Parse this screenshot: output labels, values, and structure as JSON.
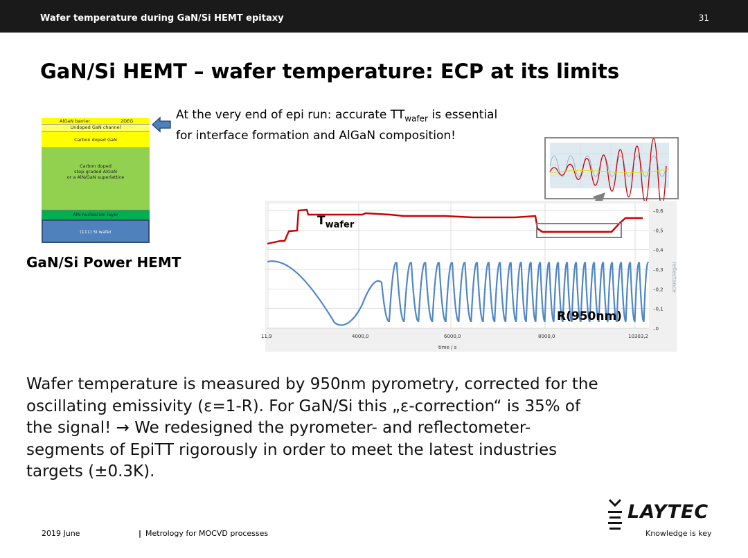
{
  "header": {
    "title": "Wafer temperature during GaN/Si HEMT epitaxy",
    "slide_number": "31"
  },
  "slide_title": "GaN/Si HEMT – wafer temperature: ECP at its limits",
  "layer_stack": {
    "layers": [
      {
        "name": "AlGaN barrier",
        "extra": "2DEG",
        "color": "#ffff00"
      },
      {
        "name": "Undoped GaN channel",
        "color": "#ffff66"
      },
      {
        "name": "Carbon doped GaN",
        "color": "#ffff00"
      },
      {
        "name": "Carbon doped step-graded AlGaN or a AlN/GaN superlattice",
        "line1": "Carbon doped",
        "line2": "step-graded AlGaN",
        "line3": "or a AlN/GaN superlattice",
        "color": "#92d050"
      },
      {
        "name": "AlN nucleation layer",
        "color": "#00b050"
      },
      {
        "name": "(111) Si wafer",
        "color": "#4f81bd"
      }
    ],
    "label": "GaN/Si Power HEMT"
  },
  "note": {
    "line1_before": "At the very end of epi run: accurate TT",
    "line1_sub": "wafer",
    "line1_after": " is essential",
    "line2": "for interface formation and AlGaN composition!"
  },
  "chart_data": {
    "type": "line",
    "xlabel": "time / s",
    "ylabel": "reflectance",
    "x_ticks": [
      "11,9",
      "4000,0",
      "6000,0",
      "8000,0",
      "10303,2"
    ],
    "y_ticks": [
      "0",
      "0,1",
      "0,2",
      "0,3",
      "0,4",
      "0,5",
      "0,6"
    ],
    "xlim": [
      11.9,
      10303.2
    ],
    "ylim": [
      0,
      0.6
    ],
    "series": [
      {
        "name": "Twafer",
        "color": "#cc0000"
      },
      {
        "name": "R(950nm)",
        "color": "#4f86c6"
      }
    ],
    "annotations": {
      "twafer_main": "T",
      "twafer_sub": "wafer",
      "reflectance": "R(950nm)"
    }
  },
  "body_text": [
    "Wafer temperature is measured by 950nm pyrometry, corrected for the",
    "oscillating emissivity (ε=1-R). For GaN/Si this „ε-correction“ is 35% of",
    "the signal! → We redesigned the pyrometer- and reflectometer-",
    "segments of EpiTT rigorously in order to meet the latest industries",
    "targets (±0.3K)."
  ],
  "footer": {
    "date": "2019 June",
    "separator": "|",
    "topic": "Metrology for MOCVD processes"
  },
  "logo": {
    "brand": "LAYTEC",
    "tagline": "Knowledge is key"
  }
}
